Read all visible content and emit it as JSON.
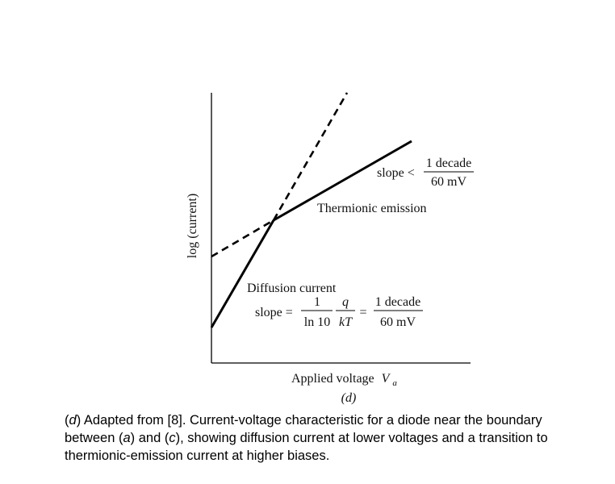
{
  "figure": {
    "ylabel": "log (current)",
    "xlabel_main": "Applied voltage",
    "xlabel_var": "V",
    "xlabel_sub": "a",
    "panel_label": "(d)",
    "thermionic": {
      "label": "Thermionic emission",
      "slope_prefix": "slope <",
      "frac_num": "1 decade",
      "frac_den": "60 mV"
    },
    "diffusion": {
      "label": "Diffusion current",
      "slope_prefix": "slope =",
      "frac1_num": "1",
      "frac1_den": "ln 10",
      "frac2_num": "q",
      "frac2_den": "kT",
      "equals": "=",
      "frac3_num": "1 decade",
      "frac3_den": "60 mV"
    }
  },
  "caption": {
    "part1": "(",
    "ref_d": "d",
    "part2": ") Adapted from [8]. Current-voltage characteristic for a diode near the boundary between (",
    "ref_a": "a",
    "part3": ") and (",
    "ref_c": "c",
    "part4": "), showing diffusion current at lower voltages and a transition to thermionic-emission current at higher biases."
  }
}
